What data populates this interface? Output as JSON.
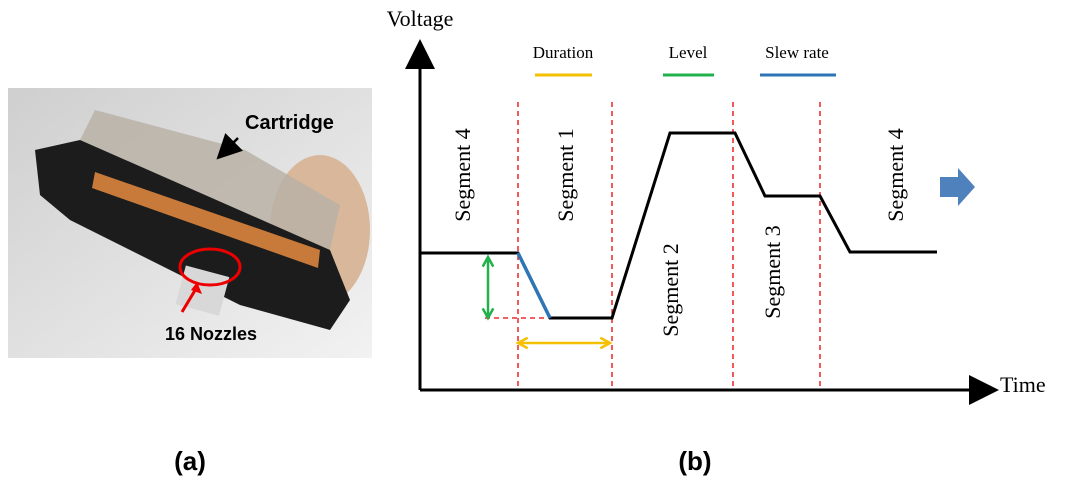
{
  "panel_a": {
    "cartridge_label": "Cartridge",
    "nozzle_label": "16 Nozzles",
    "caption": "(a)"
  },
  "panel_b": {
    "y_axis_label": "Voltage",
    "x_axis_label": "Time",
    "legend": [
      {
        "label": "Duration",
        "color": "#f5c000"
      },
      {
        "label": "Level",
        "color": "#22b14c"
      },
      {
        "label": "Slew rate",
        "color": "#2e75b6"
      }
    ],
    "segments": [
      "Segment 4",
      "Segment 1",
      "Segment 2",
      "Segment 3",
      "Segment 4"
    ],
    "caption": "(b)"
  }
}
